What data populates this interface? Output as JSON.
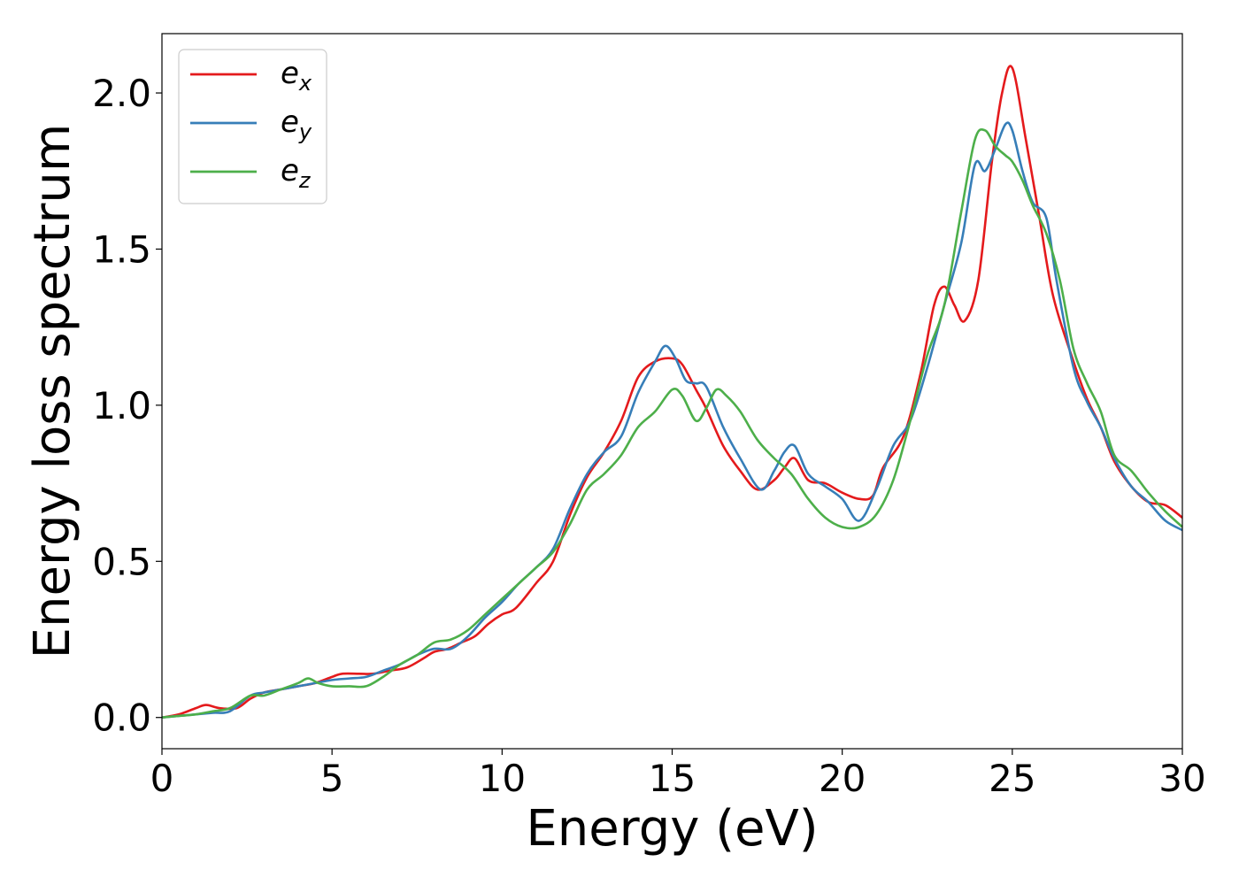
{
  "chart_data": {
    "type": "line",
    "title": "",
    "xlabel": "Energy (eV)",
    "ylabel": "Energy loss spectrum",
    "xlim": [
      0,
      30
    ],
    "ylim": [
      -0.1,
      2.19
    ],
    "xticks": [
      0,
      5,
      10,
      15,
      20,
      25,
      30
    ],
    "xtick_labels": [
      "0",
      "5",
      "10",
      "15",
      "20",
      "25",
      "30"
    ],
    "yticks": [
      0.0,
      0.5,
      1.0,
      1.5,
      2.0
    ],
    "ytick_labels": [
      "0.0",
      "0.5",
      "1.0",
      "1.5",
      "2.0"
    ],
    "grid": false,
    "legend_position": "upper-left",
    "series": [
      {
        "name_main": "e",
        "name_sub": "x",
        "color": "#e41a1c",
        "x": [
          0,
          0.5,
          1,
          1.3,
          1.7,
          2.2,
          2.6,
          3,
          3.5,
          4,
          4.5,
          5,
          5.3,
          5.8,
          6.2,
          6.7,
          7.2,
          7.7,
          8,
          8.4,
          8.8,
          9.2,
          9.6,
          10,
          10.4,
          11,
          11.5,
          12,
          12.5,
          13,
          13.5,
          14,
          14.5,
          15,
          15.3,
          15.7,
          16,
          16.5,
          17,
          17.5,
          18,
          18.3,
          18.6,
          19,
          19.5,
          20,
          20.5,
          20.9,
          21.2,
          21.8,
          22.3,
          22.7,
          23,
          23.3,
          23.6,
          24,
          24.4,
          24.7,
          25,
          25.4,
          25.8,
          26.2,
          26.8,
          27.2,
          27.6,
          28,
          28.5,
          29,
          29.5,
          30
        ],
        "y": [
          0,
          0.01,
          0.03,
          0.04,
          0.03,
          0.03,
          0.06,
          0.08,
          0.09,
          0.1,
          0.11,
          0.13,
          0.14,
          0.14,
          0.14,
          0.15,
          0.16,
          0.19,
          0.21,
          0.22,
          0.24,
          0.26,
          0.3,
          0.33,
          0.35,
          0.43,
          0.5,
          0.65,
          0.77,
          0.85,
          0.95,
          1.09,
          1.14,
          1.15,
          1.13,
          1.05,
          0.99,
          0.87,
          0.79,
          0.73,
          0.76,
          0.8,
          0.83,
          0.76,
          0.75,
          0.72,
          0.7,
          0.71,
          0.8,
          0.9,
          1.1,
          1.32,
          1.38,
          1.32,
          1.27,
          1.4,
          1.78,
          2.0,
          2.08,
          1.85,
          1.6,
          1.35,
          1.14,
          1.02,
          0.93,
          0.82,
          0.74,
          0.69,
          0.68,
          0.64
        ]
      },
      {
        "name_main": "e",
        "name_sub": "y",
        "color": "#377eb8",
        "x": [
          0,
          0.5,
          1,
          1.5,
          2,
          2.6,
          3,
          3.5,
          4,
          4.5,
          5,
          5.5,
          6,
          6.5,
          7,
          7.5,
          8,
          8.5,
          9,
          9.5,
          10,
          10.5,
          11,
          11.5,
          12,
          12.5,
          13,
          13.5,
          14,
          14.5,
          14.8,
          15.1,
          15.4,
          15.7,
          16,
          16.5,
          17,
          17.6,
          18,
          18.3,
          18.6,
          19,
          19.5,
          20,
          20.5,
          21,
          21.5,
          22,
          22.5,
          23,
          23.5,
          23.9,
          24.2,
          24.5,
          24.8,
          25,
          25.3,
          25.6,
          26,
          26.3,
          26.8,
          27.2,
          27.6,
          28,
          28.5,
          29,
          29.5,
          30
        ],
        "y": [
          0,
          0.005,
          0.01,
          0.015,
          0.02,
          0.07,
          0.08,
          0.09,
          0.1,
          0.11,
          0.12,
          0.125,
          0.13,
          0.15,
          0.17,
          0.2,
          0.22,
          0.22,
          0.26,
          0.32,
          0.37,
          0.43,
          0.48,
          0.54,
          0.67,
          0.78,
          0.85,
          0.9,
          1.04,
          1.14,
          1.19,
          1.15,
          1.08,
          1.07,
          1.06,
          0.93,
          0.83,
          0.73,
          0.79,
          0.85,
          0.87,
          0.78,
          0.74,
          0.7,
          0.63,
          0.73,
          0.87,
          0.95,
          1.12,
          1.32,
          1.52,
          1.77,
          1.75,
          1.82,
          1.9,
          1.88,
          1.75,
          1.65,
          1.6,
          1.4,
          1.12,
          1.01,
          0.93,
          0.83,
          0.74,
          0.69,
          0.63,
          0.6
        ]
      },
      {
        "name_main": "e",
        "name_sub": "z",
        "color": "#4daf4a",
        "x": [
          0,
          0.5,
          1,
          1.5,
          2,
          2.6,
          3,
          3.5,
          4,
          4.3,
          4.6,
          5,
          5.5,
          6,
          6.5,
          7,
          7.5,
          8,
          8.5,
          9,
          9.5,
          10,
          10.5,
          11,
          11.5,
          12,
          12.5,
          13,
          13.5,
          14,
          14.5,
          15,
          15.3,
          15.7,
          16,
          16.3,
          16.6,
          17,
          17.5,
          18,
          18.5,
          19,
          19.5,
          20,
          20.5,
          21,
          21.5,
          22,
          22.5,
          23,
          23.5,
          23.9,
          24.2,
          24.5,
          24.8,
          25,
          25.3,
          25.6,
          26,
          26.4,
          26.8,
          27.2,
          27.6,
          28,
          28.5,
          29,
          29.5,
          30
        ],
        "y": [
          0,
          0.005,
          0.01,
          0.02,
          0.03,
          0.07,
          0.07,
          0.09,
          0.11,
          0.125,
          0.11,
          0.1,
          0.1,
          0.1,
          0.13,
          0.17,
          0.2,
          0.24,
          0.25,
          0.28,
          0.33,
          0.38,
          0.43,
          0.48,
          0.53,
          0.62,
          0.73,
          0.78,
          0.84,
          0.93,
          0.98,
          1.05,
          1.03,
          0.95,
          0.99,
          1.05,
          1.03,
          0.98,
          0.89,
          0.83,
          0.78,
          0.7,
          0.64,
          0.61,
          0.61,
          0.65,
          0.76,
          0.95,
          1.16,
          1.32,
          1.62,
          1.85,
          1.88,
          1.83,
          1.8,
          1.78,
          1.72,
          1.64,
          1.55,
          1.4,
          1.18,
          1.07,
          0.98,
          0.84,
          0.79,
          0.72,
          0.66,
          0.61
        ]
      }
    ]
  }
}
